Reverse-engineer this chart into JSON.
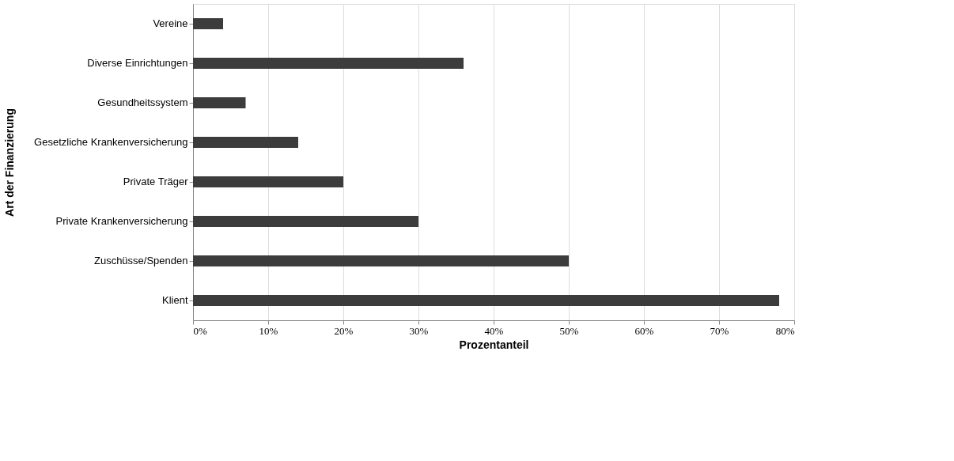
{
  "chart_data": {
    "type": "bar",
    "orientation": "horizontal",
    "xlabel": "Prozentanteil",
    "ylabel": "Art der Finanzierung",
    "categories": [
      "Vereine",
      "Diverse Einrichtungen",
      "Gesundheitssystem",
      "Gesetzliche Krankenversicherung",
      "Private Träger",
      "Private Krankenversicherung",
      "Zuschüsse/Spenden",
      "Klient"
    ],
    "values": [
      4,
      36,
      7,
      14,
      20,
      30,
      50,
      78
    ],
    "color": "#3c3c3c",
    "xlim": [
      0,
      80
    ],
    "xticks": [
      {
        "value": 0,
        "label": "0%"
      },
      {
        "value": 10,
        "label": "10%"
      },
      {
        "value": 20,
        "label": "20%"
      },
      {
        "value": 30,
        "label": "30%"
      },
      {
        "value": 40,
        "label": "40%"
      },
      {
        "value": 50,
        "label": "50%"
      },
      {
        "value": 60,
        "label": "60%"
      },
      {
        "value": 70,
        "label": "70%"
      },
      {
        "value": 80,
        "label": "80%"
      }
    ],
    "grid": "x"
  }
}
